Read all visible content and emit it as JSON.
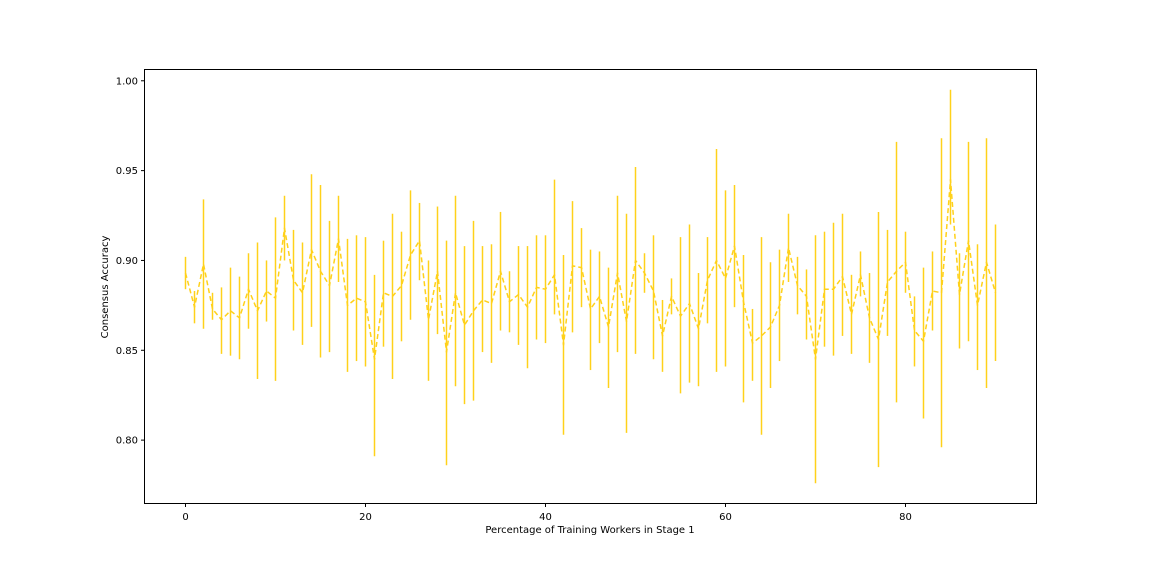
{
  "chart_data": {
    "type": "line",
    "title": "",
    "xlabel": "Percentage of Training Workers in Stage 1",
    "ylabel": "Consensus Accuracy",
    "xlim": [
      -4.5,
      94.5
    ],
    "ylim": [
      0.765,
      1.006
    ],
    "xticks": [
      0,
      20,
      40,
      60,
      80
    ],
    "yticks": [
      0.8,
      0.85,
      0.9,
      0.95,
      1.0
    ],
    "ytick_labels": [
      "0.80",
      "0.85",
      "0.90",
      "0.95",
      "1.00"
    ],
    "grid": false,
    "line_style": "dashed",
    "series_color": "#FFD11A",
    "series": [
      {
        "x": [
          0,
          1,
          2,
          3,
          4,
          5,
          6,
          7,
          8,
          9,
          10,
          11,
          12,
          13,
          14,
          15,
          16,
          17,
          18,
          19,
          20,
          21,
          22,
          23,
          24,
          25,
          26,
          27,
          28,
          29,
          30,
          31,
          32,
          33,
          34,
          35,
          36,
          37,
          38,
          39,
          40,
          41,
          42,
          43,
          44,
          45,
          46,
          47,
          48,
          49,
          50,
          51,
          52,
          53,
          54,
          55,
          56,
          57,
          58,
          59,
          60,
          61,
          62,
          63,
          64,
          65,
          66,
          67,
          68,
          69,
          70,
          71,
          72,
          73,
          74,
          75,
          76,
          77,
          78,
          79,
          80,
          81,
          82,
          83,
          84,
          85,
          86,
          87,
          88,
          89,
          90
        ],
        "y": [
          0.893,
          0.874,
          0.898,
          0.873,
          0.867,
          0.872,
          0.868,
          0.884,
          0.872,
          0.883,
          0.879,
          0.918,
          0.889,
          0.882,
          0.906,
          0.894,
          0.886,
          0.912,
          0.875,
          0.879,
          0.877,
          0.845,
          0.882,
          0.88,
          0.886,
          0.903,
          0.911,
          0.867,
          0.894,
          0.849,
          0.882,
          0.864,
          0.872,
          0.878,
          0.876,
          0.894,
          0.877,
          0.881,
          0.874,
          0.885,
          0.884,
          0.892,
          0.853,
          0.897,
          0.896,
          0.873,
          0.88,
          0.863,
          0.893,
          0.866,
          0.9,
          0.893,
          0.883,
          0.858,
          0.88,
          0.869,
          0.876,
          0.862,
          0.889,
          0.9,
          0.89,
          0.908,
          0.877,
          0.854,
          0.858,
          0.863,
          0.875,
          0.907,
          0.886,
          0.88,
          0.845,
          0.884,
          0.884,
          0.891,
          0.87,
          0.892,
          0.868,
          0.856,
          0.888,
          0.894,
          0.899,
          0.861,
          0.855,
          0.883,
          0.882,
          0.945,
          0.881,
          0.911,
          0.875,
          0.899,
          0.882
        ],
        "err_low": [
          0.884,
          0.865,
          0.862,
          0.867,
          0.848,
          0.847,
          0.845,
          0.862,
          0.834,
          0.866,
          0.833,
          0.9,
          0.861,
          0.853,
          0.863,
          0.846,
          0.849,
          0.888,
          0.838,
          0.844,
          0.841,
          0.791,
          0.852,
          0.834,
          0.855,
          0.867,
          0.889,
          0.833,
          0.859,
          0.786,
          0.83,
          0.82,
          0.822,
          0.849,
          0.843,
          0.861,
          0.86,
          0.853,
          0.84,
          0.856,
          0.854,
          0.87,
          0.803,
          0.86,
          0.874,
          0.839,
          0.854,
          0.829,
          0.849,
          0.804,
          0.848,
          0.882,
          0.845,
          0.838,
          0.87,
          0.826,
          0.832,
          0.83,
          0.865,
          0.838,
          0.841,
          0.874,
          0.821,
          0.833,
          0.803,
          0.829,
          0.844,
          0.888,
          0.87,
          0.856,
          0.776,
          0.852,
          0.847,
          0.858,
          0.848,
          0.88,
          0.843,
          0.785,
          0.858,
          0.821,
          0.882,
          0.841,
          0.812,
          0.861,
          0.796,
          0.92,
          0.851,
          0.855,
          0.839,
          0.829,
          0.844
        ],
        "err_high": [
          0.902,
          0.883,
          0.934,
          0.882,
          0.885,
          0.896,
          0.891,
          0.904,
          0.91,
          0.9,
          0.924,
          0.936,
          0.917,
          0.91,
          0.948,
          0.942,
          0.922,
          0.936,
          0.912,
          0.914,
          0.913,
          0.892,
          0.911,
          0.926,
          0.916,
          0.939,
          0.932,
          0.9,
          0.93,
          0.911,
          0.936,
          0.908,
          0.922,
          0.908,
          0.909,
          0.927,
          0.894,
          0.908,
          0.908,
          0.914,
          0.914,
          0.945,
          0.903,
          0.933,
          0.918,
          0.906,
          0.905,
          0.896,
          0.936,
          0.926,
          0.952,
          0.904,
          0.914,
          0.878,
          0.89,
          0.913,
          0.92,
          0.893,
          0.913,
          0.962,
          0.939,
          0.942,
          0.903,
          0.873,
          0.913,
          0.899,
          0.906,
          0.926,
          0.902,
          0.895,
          0.914,
          0.916,
          0.921,
          0.926,
          0.892,
          0.905,
          0.893,
          0.927,
          0.917,
          0.966,
          0.916,
          0.88,
          0.896,
          0.905,
          0.968,
          0.995,
          0.904,
          0.966,
          0.909,
          0.968,
          0.92
        ]
      }
    ]
  }
}
